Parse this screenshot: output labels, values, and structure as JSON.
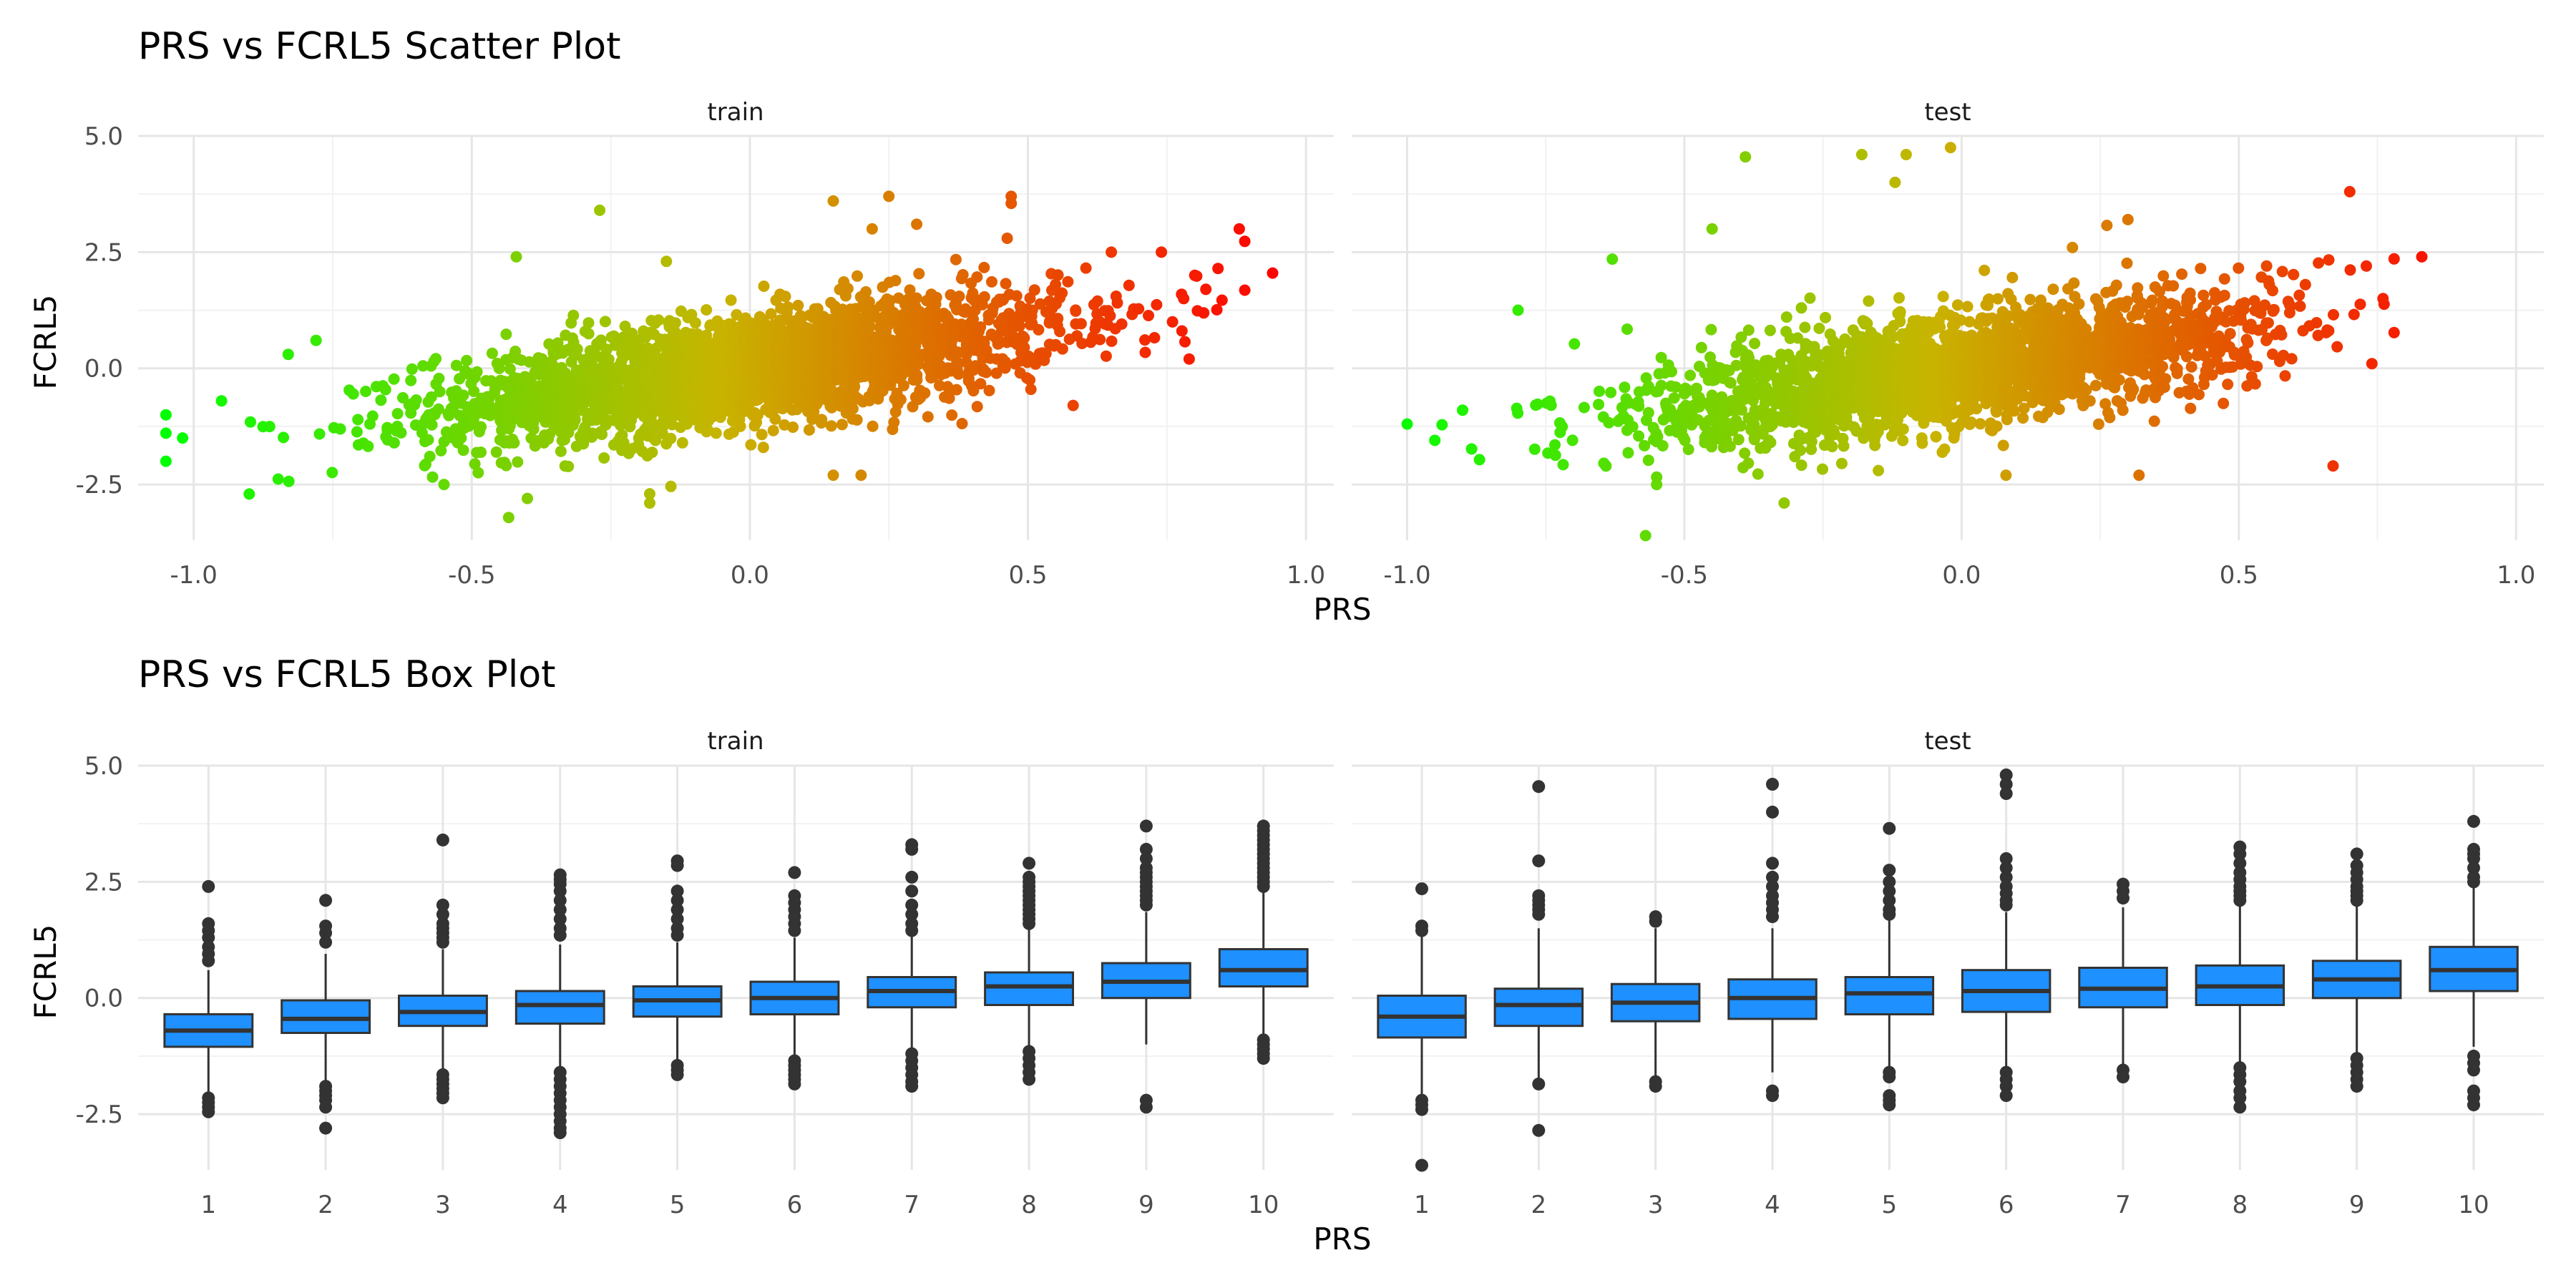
{
  "figure": {
    "scatter_title": "PRS vs FCRL5 Scatter Plot",
    "box_title": "PRS vs FCRL5 Box Plot",
    "panel_labels": [
      "train",
      "test"
    ],
    "xlabel": "PRS",
    "ylabel": "FCRL5"
  },
  "chart_data": [
    {
      "type": "scatter",
      "title": "PRS vs FCRL5 Scatter Plot",
      "xlabel": "PRS",
      "ylabel": "FCRL5",
      "facets": [
        "train",
        "test"
      ],
      "xlim": [
        -1.1,
        1.05
      ],
      "ylim": [
        -3.7,
        5.0
      ],
      "x_ticks": [
        "-1.0",
        "-0.5",
        "0.0",
        "0.5",
        "1.0"
      ],
      "y_ticks": [
        "-2.5",
        "0.0",
        "2.5",
        "5.0"
      ],
      "grid": true,
      "color_scale": {
        "low": "#00ff00",
        "mid": "#c8b400",
        "high": "#ff0000",
        "mapped_to": "PRS"
      },
      "trend": {
        "slope": 1.6,
        "intercept": 0.0,
        "spread_sd": 0.6
      },
      "series": [
        {
          "name": "train",
          "x_range": [
            -1.05,
            0.94
          ],
          "notable_points": [
            [
              0.94,
              2.05
            ],
            [
              0.88,
              3.0
            ],
            [
              0.8,
              2.0
            ],
            [
              0.78,
              1.5
            ],
            [
              0.76,
              1.0
            ],
            [
              0.74,
              2.5
            ],
            [
              0.82,
              1.7
            ],
            [
              0.79,
              0.2
            ],
            [
              0.47,
              3.7
            ],
            [
              0.47,
              3.55
            ],
            [
              0.25,
              3.7
            ],
            [
              0.3,
              3.1
            ],
            [
              0.22,
              3.0
            ],
            [
              -0.27,
              3.4
            ],
            [
              -0.42,
              2.4
            ],
            [
              -0.15,
              2.3
            ],
            [
              -0.18,
              -2.9
            ],
            [
              -0.18,
              -2.7
            ],
            [
              0.15,
              -2.3
            ],
            [
              0.2,
              -2.3
            ],
            [
              -0.4,
              -2.8
            ],
            [
              -0.55,
              -2.5
            ],
            [
              -1.05,
              -2.0
            ],
            [
              -1.05,
              -1.0
            ],
            [
              -1.02,
              -1.5
            ],
            [
              -0.95,
              -0.7
            ],
            [
              -0.78,
              0.6
            ],
            [
              -0.83,
              0.3
            ],
            [
              0.15,
              3.6
            ],
            [
              0.65,
              2.5
            ]
          ]
        },
        {
          "name": "test",
          "x_range": [
            -1.0,
            0.83
          ],
          "notable_points": [
            [
              0.83,
              2.4
            ],
            [
              0.7,
              3.8
            ],
            [
              0.73,
              2.2
            ],
            [
              0.74,
              0.1
            ],
            [
              0.67,
              -2.1
            ],
            [
              0.76,
              1.5
            ],
            [
              0.62,
              1.8
            ],
            [
              0.3,
              3.2
            ],
            [
              0.2,
              2.6
            ],
            [
              -0.02,
              4.75
            ],
            [
              -0.1,
              4.6
            ],
            [
              -0.12,
              4.0
            ],
            [
              -0.18,
              4.6
            ],
            [
              -0.39,
              4.55
            ],
            [
              -0.45,
              3.0
            ],
            [
              -0.63,
              2.35
            ],
            [
              -0.32,
              -2.9
            ],
            [
              -0.57,
              -3.6
            ],
            [
              0.08,
              -2.3
            ],
            [
              0.32,
              -2.3
            ],
            [
              -1.0,
              -1.2
            ],
            [
              -0.95,
              -1.55
            ],
            [
              -0.9,
              -0.9
            ],
            [
              -0.8,
              1.25
            ],
            [
              -0.55,
              -2.5
            ],
            [
              -0.15,
              -2.2
            ],
            [
              0.55,
              2.2
            ]
          ]
        }
      ]
    },
    {
      "type": "box",
      "title": "PRS vs FCRL5 Box Plot",
      "xlabel": "PRS",
      "ylabel": "FCRL5",
      "facets": [
        "train",
        "test"
      ],
      "categories": [
        "1",
        "2",
        "3",
        "4",
        "5",
        "6",
        "7",
        "8",
        "9",
        "10"
      ],
      "ylim": [
        -3.7,
        5.0
      ],
      "y_ticks": [
        "-2.5",
        "0.0",
        "2.5",
        "5.0"
      ],
      "grid": true,
      "box_color": "#1e90ff",
      "series": [
        {
          "name": "train",
          "boxes": [
            {
              "q1": -1.05,
              "median": -0.7,
              "q3": -0.35,
              "whisker_low": -2.05,
              "whisker_high": 0.6,
              "outliers": [
                2.4,
                1.6,
                1.45,
                1.3,
                1.1,
                0.95,
                0.8,
                -2.15,
                -2.25,
                -2.35,
                -2.45
              ]
            },
            {
              "q1": -0.75,
              "median": -0.45,
              "q3": -0.05,
              "whisker_low": -1.8,
              "whisker_high": 0.95,
              "outliers": [
                2.1,
                1.55,
                1.4,
                1.2,
                -1.9,
                -2.0,
                -2.1,
                -2.2,
                -2.35,
                -2.8
              ]
            },
            {
              "q1": -0.6,
              "median": -0.3,
              "q3": 0.05,
              "whisker_low": -1.6,
              "whisker_high": 1.05,
              "outliers": [
                3.4,
                2.0,
                1.8,
                1.6,
                1.5,
                1.4,
                1.3,
                1.2,
                -1.65,
                -1.75,
                -1.85,
                -1.95,
                -2.05,
                -2.15
              ]
            },
            {
              "q1": -0.55,
              "median": -0.15,
              "q3": 0.15,
              "whisker_low": -1.5,
              "whisker_high": 1.15,
              "outliers": [
                2.65,
                2.55,
                2.45,
                2.3,
                2.1,
                1.9,
                1.7,
                1.5,
                1.35,
                -1.6,
                -1.75,
                -1.9,
                -2.05,
                -2.2,
                -2.35,
                -2.5,
                -2.65,
                -2.8,
                -2.9
              ]
            },
            {
              "q1": -0.4,
              "median": -0.05,
              "q3": 0.25,
              "whisker_low": -1.35,
              "whisker_high": 1.2,
              "outliers": [
                2.95,
                2.85,
                2.3,
                2.1,
                1.9,
                1.7,
                1.5,
                1.35,
                -1.45,
                -1.55,
                -1.65
              ]
            },
            {
              "q1": -0.35,
              "median": 0.0,
              "q3": 0.35,
              "whisker_low": -1.3,
              "whisker_high": 1.3,
              "outliers": [
                2.7,
                2.2,
                2.05,
                1.9,
                1.75,
                1.6,
                1.45,
                -1.35,
                -1.45,
                -1.55,
                -1.65,
                -1.75,
                -1.85
              ]
            },
            {
              "q1": -0.2,
              "median": 0.15,
              "q3": 0.45,
              "whisker_low": -1.1,
              "whisker_high": 1.35,
              "outliers": [
                3.3,
                3.2,
                2.6,
                2.3,
                2.0,
                1.8,
                1.6,
                1.45,
                -1.2,
                -1.35,
                -1.5,
                -1.65,
                -1.8,
                -1.9
              ]
            },
            {
              "q1": -0.15,
              "median": 0.25,
              "q3": 0.55,
              "whisker_low": -1.1,
              "whisker_high": 1.5,
              "outliers": [
                2.9,
                2.6,
                2.5,
                2.4,
                2.3,
                2.2,
                2.1,
                2.0,
                1.9,
                1.8,
                1.7,
                1.6,
                -1.15,
                -1.3,
                -1.45,
                -1.6,
                -1.75
              ]
            },
            {
              "q1": 0.0,
              "median": 0.35,
              "q3": 0.75,
              "whisker_low": -1.0,
              "whisker_high": 1.85,
              "outliers": [
                3.7,
                3.2,
                3.0,
                2.8,
                2.7,
                2.6,
                2.5,
                2.4,
                2.3,
                2.2,
                2.1,
                2.0,
                -2.2,
                -2.35
              ]
            },
            {
              "q1": 0.25,
              "median": 0.6,
              "q3": 1.05,
              "whisker_low": -0.8,
              "whisker_high": 2.3,
              "outliers": [
                3.7,
                3.6,
                3.5,
                3.4,
                3.3,
                3.2,
                3.1,
                3.0,
                2.9,
                2.8,
                2.7,
                2.6,
                2.5,
                2.4,
                -0.9,
                -1.0,
                -1.1,
                -1.2,
                -1.3
              ]
            }
          ]
        },
        {
          "name": "test",
          "boxes": [
            {
              "q1": -0.85,
              "median": -0.4,
              "q3": 0.05,
              "whisker_low": -2.15,
              "whisker_high": 1.35,
              "outliers": [
                2.35,
                1.55,
                1.45,
                -2.2,
                -2.3,
                -2.4,
                -3.6
              ]
            },
            {
              "q1": -0.6,
              "median": -0.15,
              "q3": 0.2,
              "whisker_low": -1.75,
              "whisker_high": 1.5,
              "outliers": [
                4.55,
                2.95,
                2.2,
                2.1,
                2.0,
                1.9,
                1.8,
                -1.85,
                -2.85
              ]
            },
            {
              "q1": -0.5,
              "median": -0.1,
              "q3": 0.3,
              "whisker_low": -1.75,
              "whisker_high": 1.5,
              "outliers": [
                1.75,
                1.65,
                -1.8,
                -1.9
              ]
            },
            {
              "q1": -0.45,
              "median": 0.0,
              "q3": 0.4,
              "whisker_low": -1.6,
              "whisker_high": 1.5,
              "outliers": [
                4.6,
                4.0,
                2.9,
                2.6,
                2.4,
                2.2,
                2.05,
                1.9,
                1.75,
                -2.0,
                -2.1
              ]
            },
            {
              "q1": -0.35,
              "median": 0.1,
              "q3": 0.45,
              "whisker_low": -1.5,
              "whisker_high": 1.7,
              "outliers": [
                3.65,
                2.75,
                2.5,
                2.3,
                2.1,
                1.9,
                1.8,
                -1.6,
                -1.7,
                -2.1,
                -2.2,
                -2.3
              ]
            },
            {
              "q1": -0.3,
              "median": 0.15,
              "q3": 0.6,
              "whisker_low": -1.55,
              "whisker_high": 1.85,
              "outliers": [
                4.8,
                4.6,
                4.4,
                3.0,
                2.8,
                2.6,
                2.4,
                2.25,
                2.1,
                2.0,
                -1.6,
                -1.75,
                -1.9,
                -2.1
              ]
            },
            {
              "q1": -0.2,
              "median": 0.2,
              "q3": 0.65,
              "whisker_low": -1.45,
              "whisker_high": 1.95,
              "outliers": [
                2.45,
                2.3,
                2.15,
                -1.55,
                -1.7
              ]
            },
            {
              "q1": -0.15,
              "median": 0.25,
              "q3": 0.7,
              "whisker_low": -1.4,
              "whisker_high": 2.0,
              "outliers": [
                3.25,
                3.1,
                2.9,
                2.7,
                2.55,
                2.4,
                2.3,
                2.2,
                2.1,
                -1.5,
                -1.65,
                -1.8,
                -2.0,
                -2.15,
                -2.35
              ]
            },
            {
              "q1": 0.0,
              "median": 0.4,
              "q3": 0.8,
              "whisker_low": -1.2,
              "whisker_high": 2.0,
              "outliers": [
                3.1,
                2.85,
                2.7,
                2.55,
                2.4,
                2.3,
                2.2,
                2.1,
                -1.3,
                -1.45,
                -1.6,
                -1.75,
                -1.9
              ]
            },
            {
              "q1": 0.15,
              "median": 0.6,
              "q3": 1.1,
              "whisker_low": -1.05,
              "whisker_high": 2.4,
              "outliers": [
                3.8,
                3.2,
                3.1,
                3.0,
                2.8,
                2.6,
                2.5,
                -1.25,
                -1.4,
                -1.55,
                -2.0,
                -2.15,
                -2.3
              ]
            }
          ]
        }
      ]
    }
  ]
}
